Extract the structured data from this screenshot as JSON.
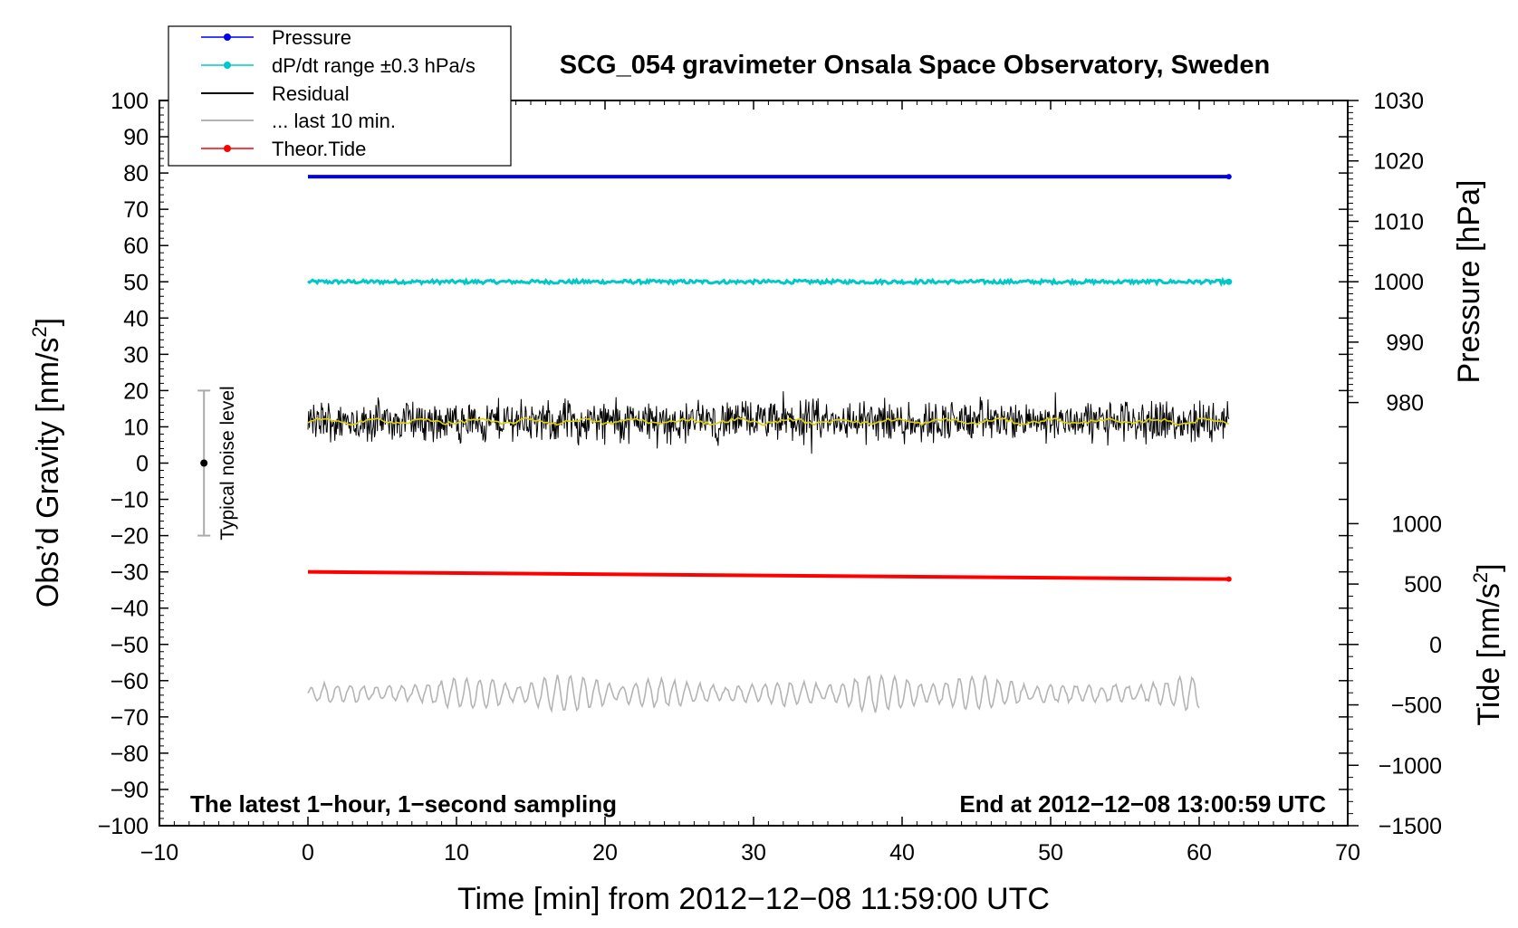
{
  "chart_data": {
    "type": "line",
    "title": "SCG_054 gravimeter Onsala Space Observatory, Sweden",
    "xlabel": "Time [min] from 2012−12−08 11:59:00 UTC",
    "ylabel_left": "Obs’d Gravity [nm/s²]",
    "ylabel_right_pressure": "Pressure [hPa]",
    "ylabel_right_tide": "Tide [nm/s²]",
    "xlim": [
      -10,
      70
    ],
    "ylim": [
      -100,
      100
    ],
    "pressure_axis": {
      "range": [
        980,
        1030
      ]
    },
    "tide_axis": {
      "range": [
        -1500,
        1000
      ]
    },
    "x_ticks": [
      "−10",
      "0",
      "10",
      "20",
      "30",
      "40",
      "50",
      "60",
      "70"
    ],
    "x_tick_values": [
      -10,
      0,
      10,
      20,
      30,
      40,
      50,
      60,
      70
    ],
    "y_ticks": [
      "100",
      "90",
      "80",
      "70",
      "60",
      "50",
      "40",
      "30",
      "20",
      "10",
      "0",
      "−10",
      "−20",
      "−30",
      "−40",
      "−50",
      "−60",
      "−70",
      "−80",
      "−90",
      "−100"
    ],
    "y_tick_values": [
      100,
      90,
      80,
      70,
      60,
      50,
      40,
      30,
      20,
      10,
      0,
      -10,
      -20,
      -30,
      -40,
      -50,
      -60,
      -70,
      -80,
      -90,
      -100
    ],
    "pressure_ticks": [
      "1030",
      "1020",
      "1010",
      "1000",
      "990",
      "980"
    ],
    "pressure_tick_values": [
      1030,
      1020,
      1010,
      1000,
      990,
      980
    ],
    "tide_ticks": [
      "1000",
      "500",
      "0",
      "−500",
      "−1000",
      "−1500"
    ],
    "tide_tick_values": [
      1000,
      500,
      0,
      -500,
      -1000,
      -1500
    ],
    "legend": {
      "placement": "top-left",
      "entries": [
        "Pressure",
        "dP/dt range ±0.3 hPa/s",
        "Residual",
        "... last 10 min.",
        "Theor.Tide"
      ]
    },
    "series": [
      {
        "name": "Pressure",
        "color": "#0000ee",
        "x": [
          0,
          62
        ],
        "y": [
          79,
          79
        ]
      },
      {
        "name": "dP/dt range ±0.3 hPa/s",
        "color": "#00c8c8",
        "x": [
          0,
          62
        ],
        "y": [
          50,
          50
        ],
        "band": 1
      },
      {
        "name": "Residual",
        "color": "#000000",
        "x": [
          0,
          62
        ],
        "mean": 11.5,
        "spread": 7
      },
      {
        "name": "... last 10 min.",
        "color": "#b4b4b4",
        "x": [
          0,
          60
        ],
        "mean": -63.5,
        "spread": 5
      },
      {
        "name": "Theor.Tide",
        "color": "#ff0000",
        "x": [
          0,
          62
        ],
        "y": [
          -30,
          -32
        ]
      }
    ],
    "residual_smooth_color": "#e0d000",
    "noise_level": {
      "label": "Typical noise level",
      "x": -7,
      "center": 0,
      "range": [
        -20,
        20
      ]
    },
    "annotations": {
      "left": "The latest 1−hour, 1−second sampling",
      "right": "End at 2012−12−08 13:00:59 UTC"
    }
  }
}
